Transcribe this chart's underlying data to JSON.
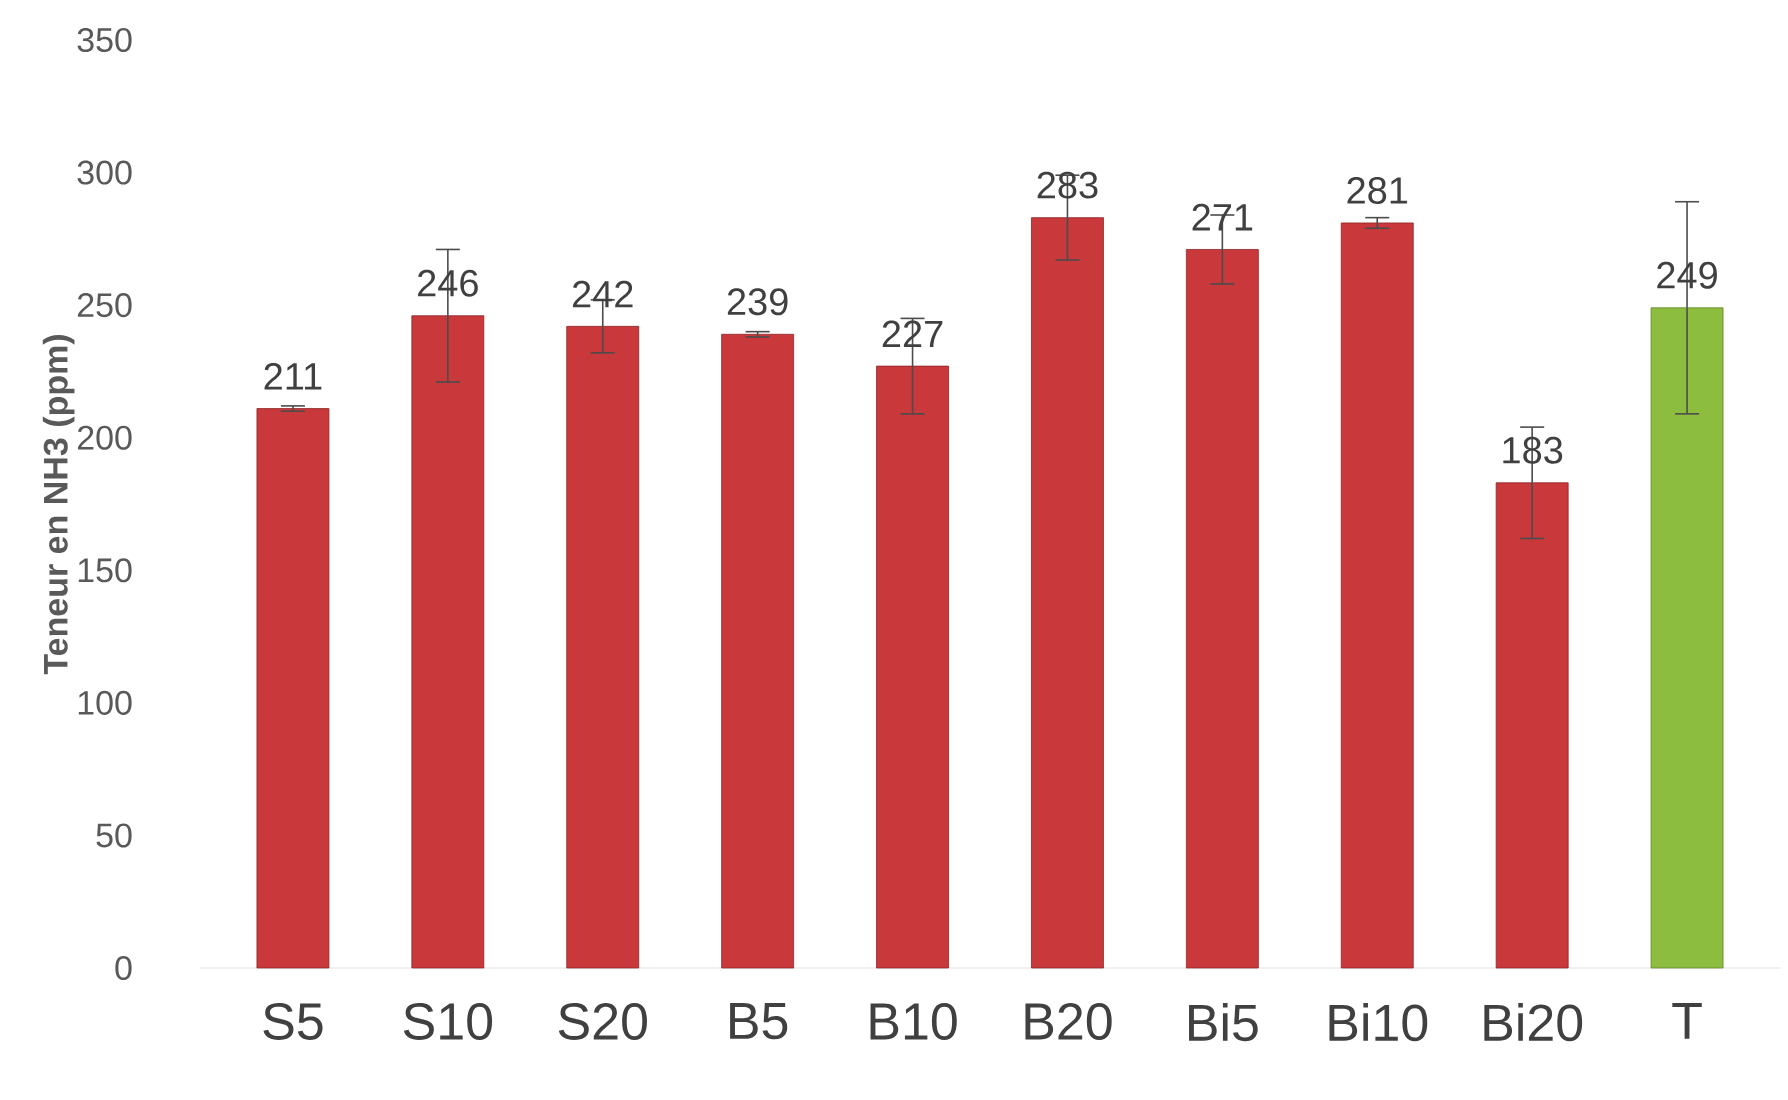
{
  "chart_data": {
    "type": "bar",
    "ylabel": "Teneur en NH3 (ppm)",
    "categories": [
      "S5",
      "S10",
      "S20",
      "B5",
      "B10",
      "B20",
      "Bi5",
      "Bi10",
      "Bi20",
      "T"
    ],
    "values": [
      211,
      246,
      242,
      239,
      227,
      283,
      271,
      281,
      183,
      249
    ],
    "errors": [
      1,
      25,
      10,
      1,
      18,
      16,
      13,
      2,
      21,
      40
    ],
    "colors": [
      "#c9383a",
      "#c9383a",
      "#c9383a",
      "#c9383a",
      "#c9383a",
      "#c9383a",
      "#c9383a",
      "#c9383a",
      "#c9383a",
      "#8dbd3e"
    ],
    "ylim": [
      0,
      350
    ],
    "yticks": [
      0,
      50,
      100,
      150,
      200,
      250,
      300,
      350
    ],
    "data_labels": true
  }
}
